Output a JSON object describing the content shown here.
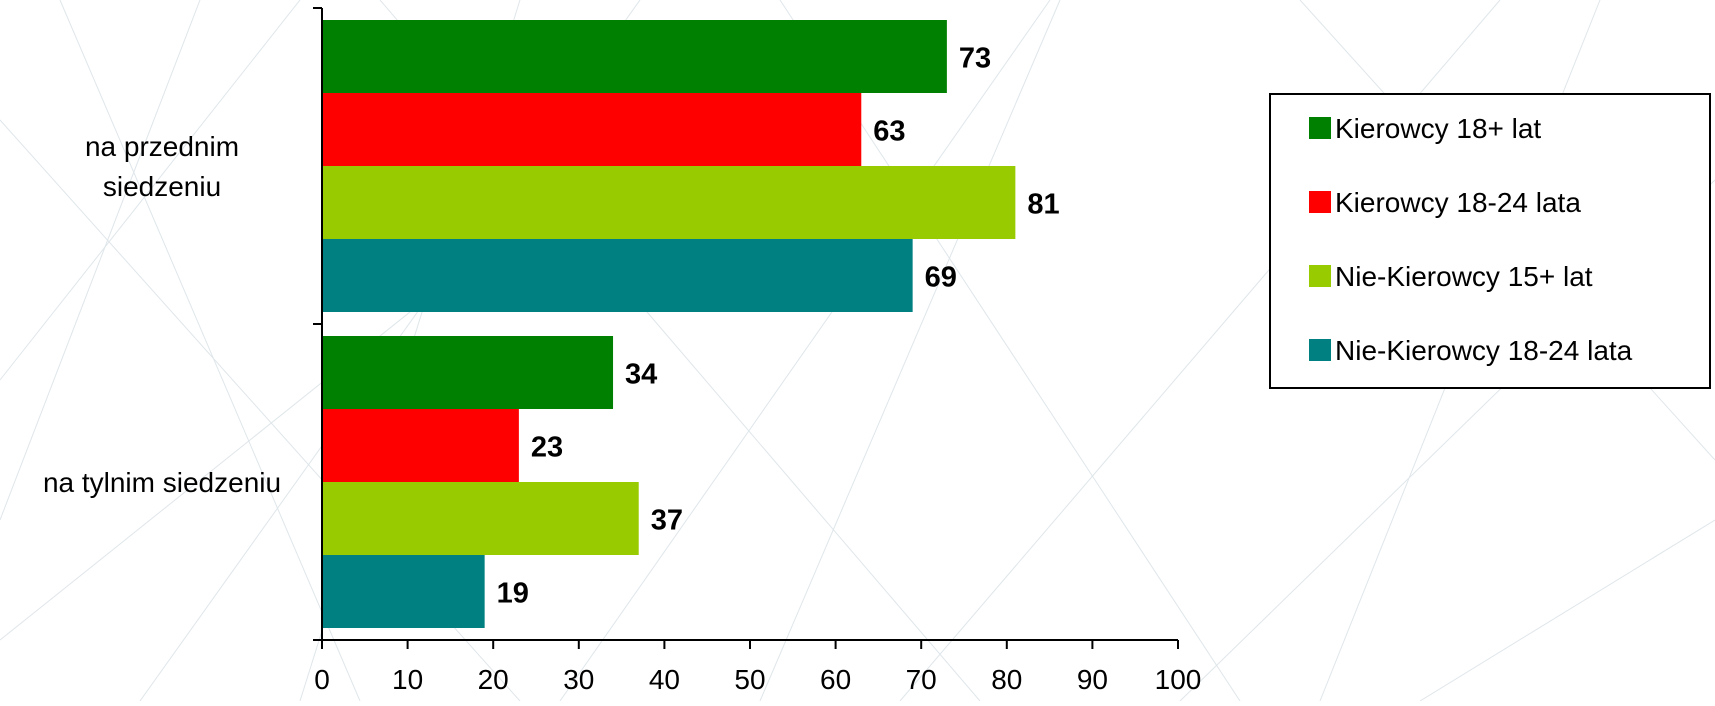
{
  "chart_data": {
    "type": "bar",
    "orientation": "horizontal",
    "categories": [
      "na przednim siedzeniu",
      "na tylnim siedzeniu"
    ],
    "category_label_lines": [
      [
        "na przednim",
        "siedzeniu"
      ],
      [
        "na tylnim siedzeniu"
      ]
    ],
    "series": [
      {
        "name": "Kierowcy 18+ lat",
        "color": "#008000",
        "values": [
          73,
          34
        ]
      },
      {
        "name": "Kierowcy 18-24 lata",
        "color": "#FF0000",
        "values": [
          63,
          23
        ]
      },
      {
        "name": "Nie-Kierowcy 15+ lat",
        "color": "#99CC00",
        "values": [
          81,
          37
        ]
      },
      {
        "name": "Nie-Kierowcy 18-24 lata",
        "color": "#008080",
        "values": [
          69,
          19
        ]
      }
    ],
    "xlim": [
      0,
      100
    ],
    "xticks": [
      "0",
      "10",
      "20",
      "30",
      "40",
      "50",
      "60",
      "70",
      "80",
      "90",
      "100"
    ],
    "data_labels": true,
    "grid": false,
    "legend_position": "right",
    "title": "",
    "xlabel": "",
    "ylabel": ""
  }
}
